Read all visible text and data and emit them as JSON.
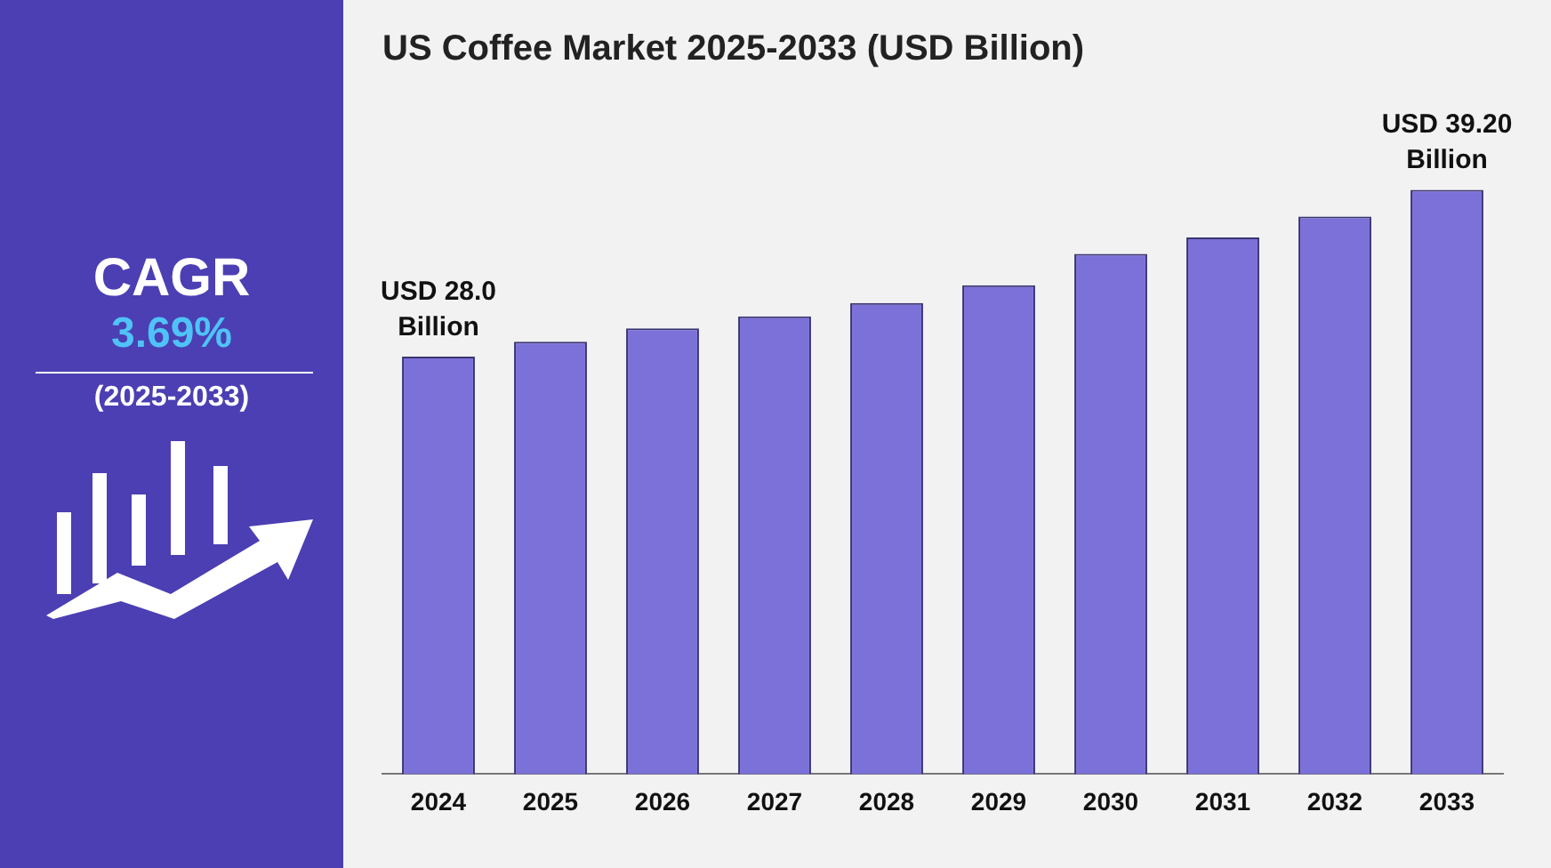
{
  "chart_data": {
    "type": "bar",
    "title": "US Coffee Market 2025-2033 (USD Billion)",
    "categories": [
      "2024",
      "2025",
      "2026",
      "2027",
      "2028",
      "2029",
      "2030",
      "2031",
      "2032",
      "2033"
    ],
    "values": [
      28.0,
      29.0,
      29.9,
      30.7,
      31.6,
      32.8,
      34.9,
      36.0,
      37.4,
      39.2
    ],
    "value_labels": [
      "USD 28.0\nBillion",
      null,
      null,
      null,
      null,
      null,
      null,
      null,
      null,
      "USD 39.20\nBillion"
    ],
    "color": "#7b71d9",
    "tick_labels": "x",
    "grid": false,
    "legend": false,
    "annotations": [
      "CAGR",
      "3.69%",
      "(2025-2033)"
    ]
  }
}
